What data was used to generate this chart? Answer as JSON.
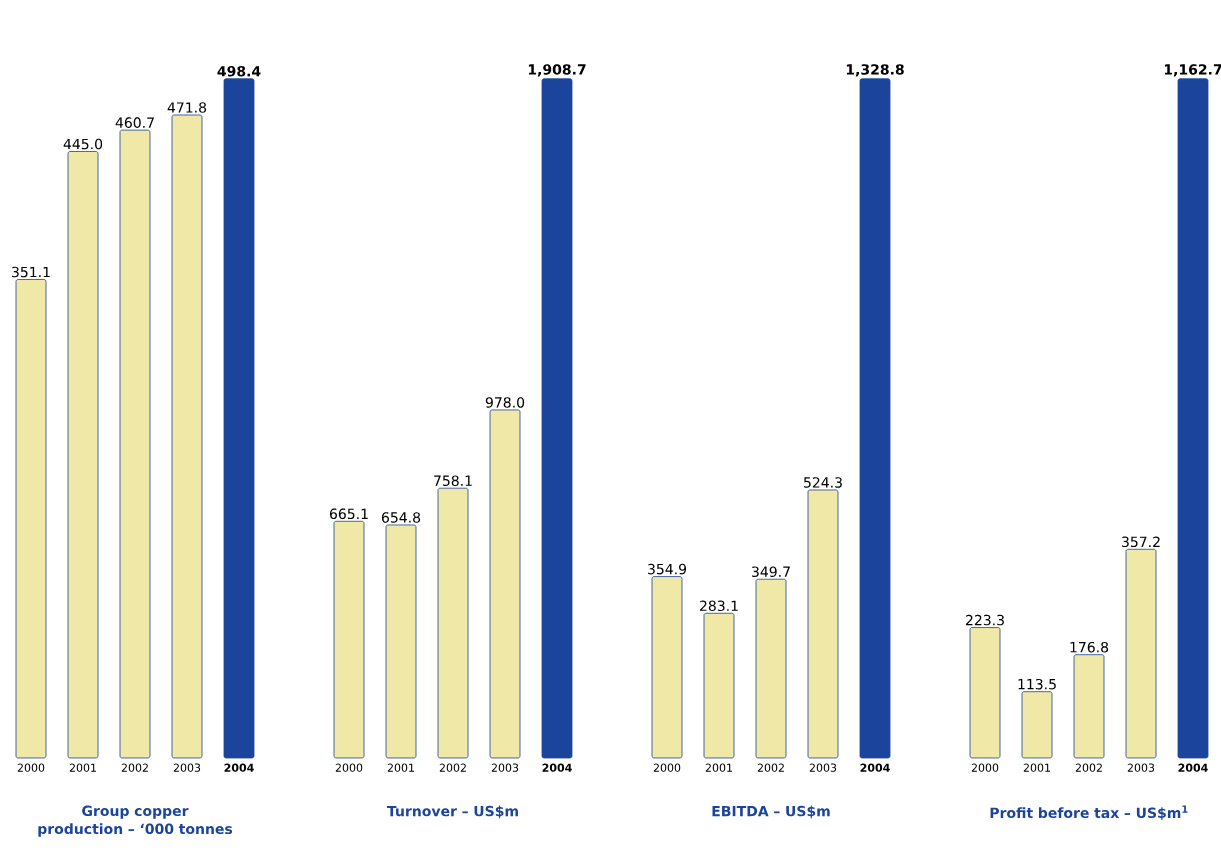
{
  "chart_data": [
    {
      "type": "bar",
      "title": "Group copper production – ‘000 tonnes",
      "categories": [
        "2000",
        "2001",
        "2002",
        "2003",
        "2004"
      ],
      "values": [
        351.1,
        445.0,
        460.7,
        471.8,
        498.4
      ],
      "value_labels": [
        "351.1",
        "445.0",
        "460.7",
        "471.8",
        "498.4"
      ],
      "colors": [
        "#f0e8a6",
        "#f0e8a6",
        "#f0e8a6",
        "#f0e8a6",
        "#1b449c"
      ]
    },
    {
      "type": "bar",
      "title": "Turnover – US$m",
      "categories": [
        "2000",
        "2001",
        "2002",
        "2003",
        "2004"
      ],
      "values": [
        665.1,
        654.8,
        758.1,
        978.0,
        1908.7
      ],
      "value_labels": [
        "665.1",
        "654.8",
        "758.1",
        "978.0",
        "1,908.7"
      ],
      "colors": [
        "#f0e8a6",
        "#f0e8a6",
        "#f0e8a6",
        "#f0e8a6",
        "#1b449c"
      ]
    },
    {
      "type": "bar",
      "title": "EBITDA – US$m",
      "categories": [
        "2000",
        "2001",
        "2002",
        "2003",
        "2004"
      ],
      "values": [
        354.9,
        283.1,
        349.7,
        524.3,
        1328.8
      ],
      "value_labels": [
        "354.9",
        "283.1",
        "349.7",
        "524.3",
        "1,328.8"
      ],
      "colors": [
        "#f0e8a6",
        "#f0e8a6",
        "#f0e8a6",
        "#f0e8a6",
        "#1b449c"
      ]
    },
    {
      "type": "bar",
      "title": "Profit before tax – US$m$^{1}$",
      "categories": [
        "2000",
        "2001",
        "2002",
        "2003",
        "2004"
      ],
      "values": [
        223.3,
        113.5,
        176.8,
        357.2,
        1162.7
      ],
      "value_labels": [
        "223.3",
        "113.5",
        "176.8",
        "357.2",
        "1,162.7"
      ],
      "colors": [
        "#f0e8a6",
        "#f0e8a6",
        "#f0e8a6",
        "#f0e8a6",
        "#1b449c"
      ]
    }
  ]
}
